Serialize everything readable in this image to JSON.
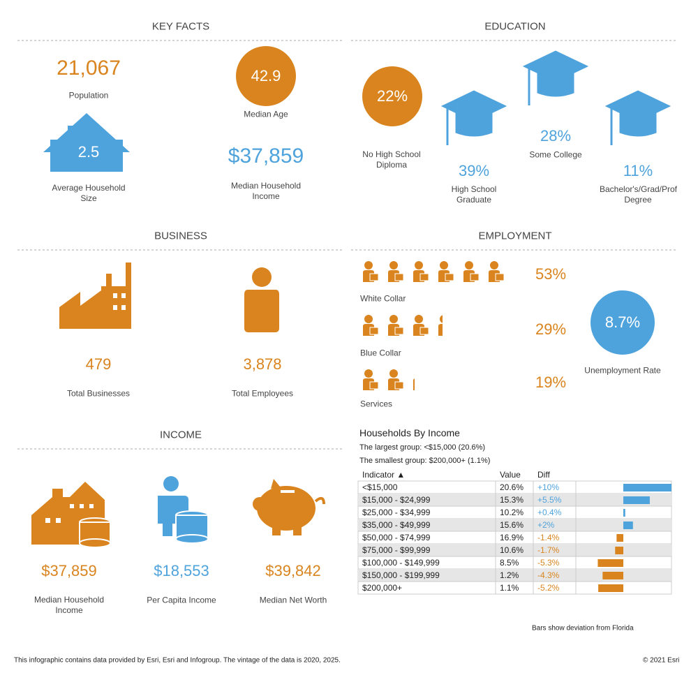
{
  "key_facts": {
    "title": "KEY FACTS",
    "population": {
      "value": "21,067",
      "label": "Population"
    },
    "median_age": {
      "value": "42.9",
      "label": "Median Age"
    },
    "household_size": {
      "value": "2.5",
      "label": "Average Household Size"
    },
    "median_income": {
      "value": "$37,859",
      "label": "Median Household Income"
    }
  },
  "education": {
    "title": "EDUCATION",
    "items": [
      {
        "value": "22%",
        "label": "No High School Diploma"
      },
      {
        "value": "39%",
        "label": "High School Graduate"
      },
      {
        "value": "28%",
        "label": "Some College"
      },
      {
        "value": "11%",
        "label": "Bachelor's/Grad/Prof Degree"
      }
    ]
  },
  "business": {
    "title": "BUSINESS",
    "businesses": {
      "value": "479",
      "label": "Total Businesses"
    },
    "employees": {
      "value": "3,878",
      "label": "Total Employees"
    }
  },
  "employment": {
    "title": "EMPLOYMENT",
    "groups": [
      {
        "label": "White Collar",
        "value": {
          "value": 53,
          "label": "53%"
        }
      },
      {
        "label": "Blue Collar",
        "value": {
          "value": 29,
          "label": "29%"
        }
      },
      {
        "label": "Services",
        "value": {
          "value": 19,
          "label": "19%"
        }
      }
    ],
    "unemployment": {
      "value": "8.7%",
      "label": "Unemployment Rate"
    }
  },
  "income": {
    "title": "INCOME",
    "items": [
      {
        "value": "$37,859",
        "label": "Median Household Income"
      },
      {
        "value": "$18,553",
        "label": "Per Capita Income"
      },
      {
        "value": "$39,842",
        "label": "Median Net Worth"
      }
    ]
  },
  "households_by_income": {
    "title": "Households By Income",
    "largest": "The largest group: <$15,000 (20.6%)",
    "smallest": "The smallest group: $200,000+ (1.1%)",
    "columns": [
      "Indicator ▲",
      "Value",
      "Diff"
    ],
    "rows": [
      {
        "indicator": "<$15,000",
        "value": "20.6%",
        "diff": {
          "value": 10,
          "label": "+10%"
        }
      },
      {
        "indicator": "$15,000 - $24,999",
        "value": "15.3%",
        "diff": {
          "value": 5.5,
          "label": "+5.5%"
        }
      },
      {
        "indicator": "$25,000 - $34,999",
        "value": "10.2%",
        "diff": {
          "value": 0.4,
          "label": "+0.4%"
        }
      },
      {
        "indicator": "$35,000 - $49,999",
        "value": "15.6%",
        "diff": {
          "value": 2,
          "label": "+2%"
        }
      },
      {
        "indicator": "$50,000 - $74,999",
        "value": "16.9%",
        "diff": {
          "value": -1.4,
          "label": "-1.4%"
        }
      },
      {
        "indicator": "$75,000 - $99,999",
        "value": "10.6%",
        "diff": {
          "value": -1.7,
          "label": "-1.7%"
        }
      },
      {
        "indicator": "$100,000 - $149,999",
        "value": "8.5%",
        "diff": {
          "value": -5.3,
          "label": "-5.3%"
        }
      },
      {
        "indicator": "$150,000 - $199,999",
        "value": "1.2%",
        "diff": {
          "value": -4.3,
          "label": "-4.3%"
        }
      },
      {
        "indicator": "$200,000+",
        "value": "1.1%",
        "diff": {
          "value": -5.2,
          "label": "-5.2%"
        }
      }
    ],
    "note": "Bars show deviation from",
    "region": "Florida"
  },
  "footer": {
    "disclaimer": "This infographic contains data provided by Esri, Esri and Infogroup. The vintage of the data is 2020, 2025.",
    "copyright": "© 2021 Esri"
  }
}
